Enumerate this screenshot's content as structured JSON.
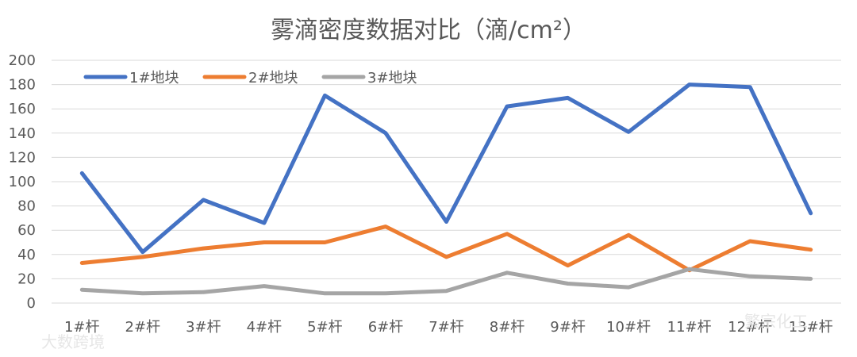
{
  "chart_data": {
    "type": "line",
    "title": "雾滴密度数据对比（滴/cm²）",
    "categories": [
      "1#杆",
      "2#杆",
      "3#杆",
      "4#杆",
      "5#杆",
      "6#杆",
      "7#杆",
      "8#杆",
      "9#杆",
      "10#杆",
      "11#杆",
      "12#杆",
      "13#杆"
    ],
    "ylim": [
      0,
      200
    ],
    "yticks": [
      0,
      20,
      40,
      60,
      80,
      100,
      120,
      140,
      160,
      180,
      200
    ],
    "grid": true,
    "legend": "top-left",
    "series": [
      {
        "name": "1#地块",
        "color": "#4472c4",
        "values": [
          107,
          42,
          85,
          66,
          171,
          140,
          67,
          162,
          169,
          141,
          180,
          178,
          74
        ]
      },
      {
        "name": "2#地块",
        "color": "#ed7d31",
        "values": [
          33,
          38,
          45,
          50,
          50,
          63,
          38,
          57,
          31,
          56,
          27,
          51,
          44
        ]
      },
      {
        "name": "3#地块",
        "color": "#a5a5a5",
        "values": [
          11,
          8,
          9,
          14,
          8,
          8,
          10,
          25,
          16,
          13,
          28,
          22,
          20
        ]
      }
    ]
  },
  "watermarks": [
    "大数跨境",
    "繁宗化工"
  ]
}
